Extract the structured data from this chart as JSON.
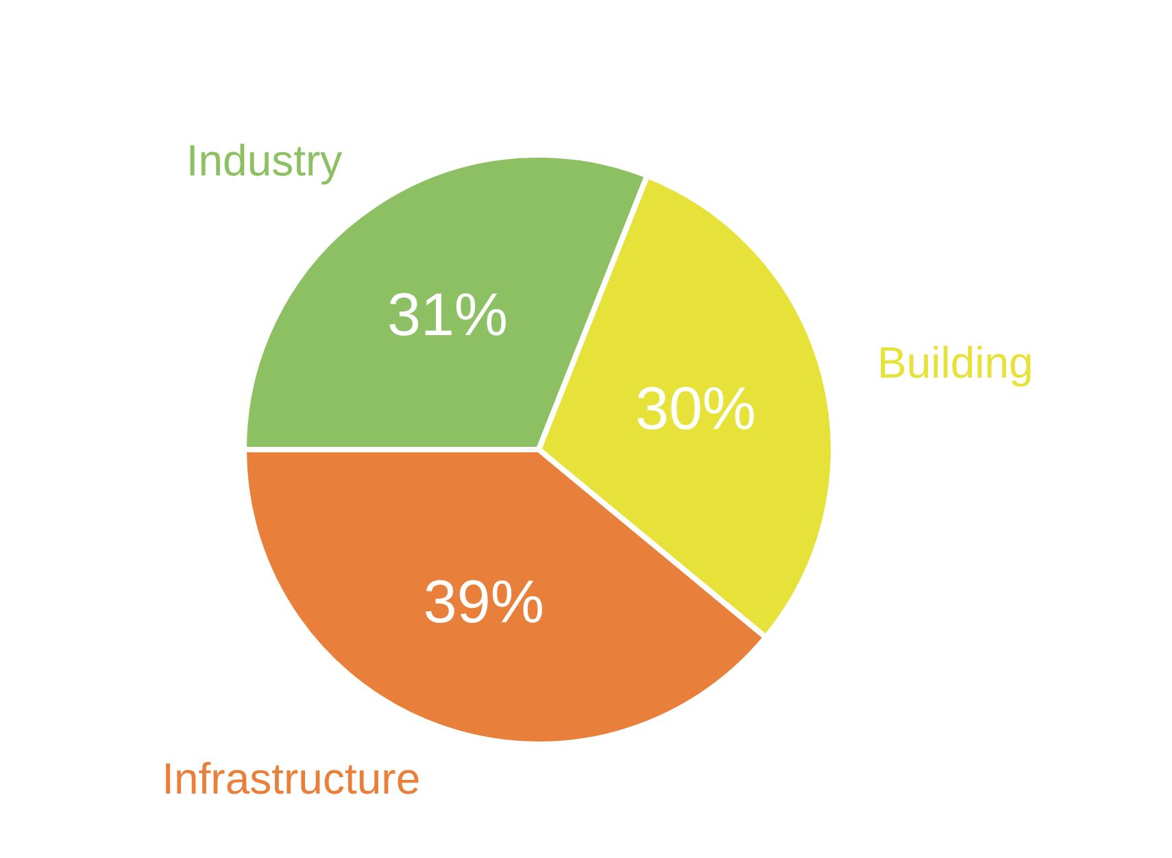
{
  "chart_data": {
    "type": "pie",
    "categories": [
      "Industry",
      "Building",
      "Infrastructure"
    ],
    "values": [
      31,
      30,
      39
    ],
    "value_labels": [
      "31%",
      "30%",
      "39%"
    ],
    "colors": [
      "#8cc063",
      "#e6e23a",
      "#e8803c"
    ],
    "legend": false
  }
}
